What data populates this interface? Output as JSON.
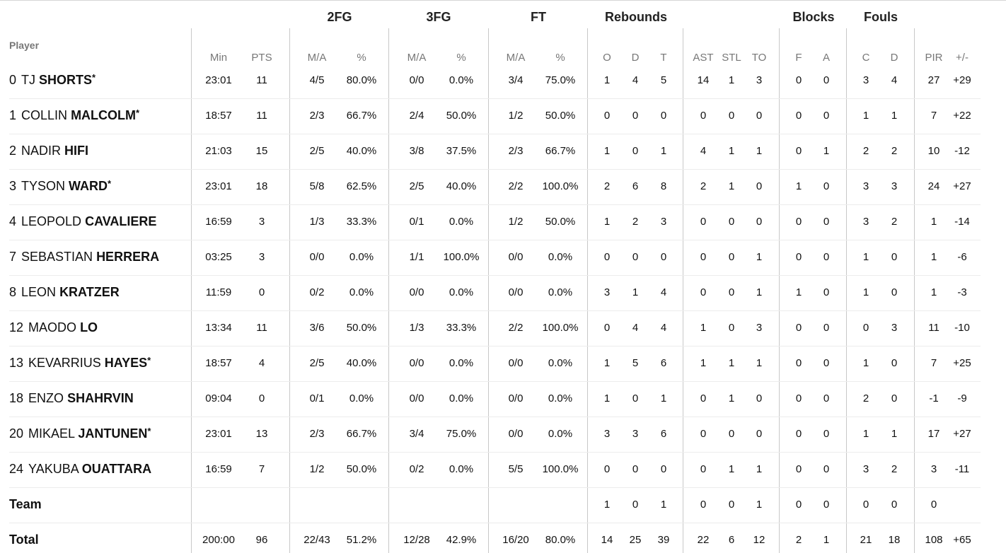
{
  "header": {
    "player": "Player",
    "groups": {
      "fg2": "2FG",
      "fg3": "3FG",
      "ft": "FT",
      "rebounds": "Rebounds",
      "blocks": "Blocks",
      "fouls": "Fouls"
    },
    "columns": {
      "min": "Min",
      "pts": "PTS",
      "fg2_ma": "M/A",
      "fg2_pct": "%",
      "fg3_ma": "M/A",
      "fg3_pct": "%",
      "ft_ma": "M/A",
      "ft_pct": "%",
      "reb_o": "O",
      "reb_d": "D",
      "reb_t": "T",
      "ast": "AST",
      "stl": "STL",
      "to": "TO",
      "blk_f": "F",
      "blk_a": "A",
      "foul_c": "C",
      "foul_d": "D",
      "pir": "PIR",
      "pm": "+/-"
    }
  },
  "players": [
    {
      "number": "0",
      "first": "TJ",
      "last": "SHORTS",
      "starter": "*",
      "min": "23:01",
      "pts": "11",
      "fg2_ma": "4/5",
      "fg2_pct": "80.0%",
      "fg3_ma": "0/0",
      "fg3_pct": "0.0%",
      "ft_ma": "3/4",
      "ft_pct": "75.0%",
      "reb_o": "1",
      "reb_d": "4",
      "reb_t": "5",
      "ast": "14",
      "stl": "1",
      "to": "3",
      "blk_f": "0",
      "blk_a": "0",
      "foul_c": "3",
      "foul_d": "4",
      "pir": "27",
      "pm": "+29"
    },
    {
      "number": "1",
      "first": "COLLIN",
      "last": "MALCOLM",
      "starter": "*",
      "min": "18:57",
      "pts": "11",
      "fg2_ma": "2/3",
      "fg2_pct": "66.7%",
      "fg3_ma": "2/4",
      "fg3_pct": "50.0%",
      "ft_ma": "1/2",
      "ft_pct": "50.0%",
      "reb_o": "0",
      "reb_d": "0",
      "reb_t": "0",
      "ast": "0",
      "stl": "0",
      "to": "0",
      "blk_f": "0",
      "blk_a": "0",
      "foul_c": "1",
      "foul_d": "1",
      "pir": "7",
      "pm": "+22"
    },
    {
      "number": "2",
      "first": "NADIR",
      "last": "HIFI",
      "starter": "",
      "min": "21:03",
      "pts": "15",
      "fg2_ma": "2/5",
      "fg2_pct": "40.0%",
      "fg3_ma": "3/8",
      "fg3_pct": "37.5%",
      "ft_ma": "2/3",
      "ft_pct": "66.7%",
      "reb_o": "1",
      "reb_d": "0",
      "reb_t": "1",
      "ast": "4",
      "stl": "1",
      "to": "1",
      "blk_f": "0",
      "blk_a": "1",
      "foul_c": "2",
      "foul_d": "2",
      "pir": "10",
      "pm": "-12"
    },
    {
      "number": "3",
      "first": "TYSON",
      "last": "WARD",
      "starter": "*",
      "min": "23:01",
      "pts": "18",
      "fg2_ma": "5/8",
      "fg2_pct": "62.5%",
      "fg3_ma": "2/5",
      "fg3_pct": "40.0%",
      "ft_ma": "2/2",
      "ft_pct": "100.0%",
      "reb_o": "2",
      "reb_d": "6",
      "reb_t": "8",
      "ast": "2",
      "stl": "1",
      "to": "0",
      "blk_f": "1",
      "blk_a": "0",
      "foul_c": "3",
      "foul_d": "3",
      "pir": "24",
      "pm": "+27"
    },
    {
      "number": "4",
      "first": "LEOPOLD",
      "last": "CAVALIERE",
      "starter": "",
      "min": "16:59",
      "pts": "3",
      "fg2_ma": "1/3",
      "fg2_pct": "33.3%",
      "fg3_ma": "0/1",
      "fg3_pct": "0.0%",
      "ft_ma": "1/2",
      "ft_pct": "50.0%",
      "reb_o": "1",
      "reb_d": "2",
      "reb_t": "3",
      "ast": "0",
      "stl": "0",
      "to": "0",
      "blk_f": "0",
      "blk_a": "0",
      "foul_c": "3",
      "foul_d": "2",
      "pir": "1",
      "pm": "-14"
    },
    {
      "number": "7",
      "first": "SEBASTIAN",
      "last": "HERRERA",
      "starter": "",
      "min": "03:25",
      "pts": "3",
      "fg2_ma": "0/0",
      "fg2_pct": "0.0%",
      "fg3_ma": "1/1",
      "fg3_pct": "100.0%",
      "ft_ma": "0/0",
      "ft_pct": "0.0%",
      "reb_o": "0",
      "reb_d": "0",
      "reb_t": "0",
      "ast": "0",
      "stl": "0",
      "to": "1",
      "blk_f": "0",
      "blk_a": "0",
      "foul_c": "1",
      "foul_d": "0",
      "pir": "1",
      "pm": "-6"
    },
    {
      "number": "8",
      "first": "LEON",
      "last": "KRATZER",
      "starter": "",
      "min": "11:59",
      "pts": "0",
      "fg2_ma": "0/2",
      "fg2_pct": "0.0%",
      "fg3_ma": "0/0",
      "fg3_pct": "0.0%",
      "ft_ma": "0/0",
      "ft_pct": "0.0%",
      "reb_o": "3",
      "reb_d": "1",
      "reb_t": "4",
      "ast": "0",
      "stl": "0",
      "to": "1",
      "blk_f": "1",
      "blk_a": "0",
      "foul_c": "1",
      "foul_d": "0",
      "pir": "1",
      "pm": "-3"
    },
    {
      "number": "12",
      "first": "MAODO",
      "last": "LO",
      "starter": "",
      "min": "13:34",
      "pts": "11",
      "fg2_ma": "3/6",
      "fg2_pct": "50.0%",
      "fg3_ma": "1/3",
      "fg3_pct": "33.3%",
      "ft_ma": "2/2",
      "ft_pct": "100.0%",
      "reb_o": "0",
      "reb_d": "4",
      "reb_t": "4",
      "ast": "1",
      "stl": "0",
      "to": "3",
      "blk_f": "0",
      "blk_a": "0",
      "foul_c": "0",
      "foul_d": "3",
      "pir": "11",
      "pm": "-10"
    },
    {
      "number": "13",
      "first": "KEVARRIUS",
      "last": "HAYES",
      "starter": "*",
      "min": "18:57",
      "pts": "4",
      "fg2_ma": "2/5",
      "fg2_pct": "40.0%",
      "fg3_ma": "0/0",
      "fg3_pct": "0.0%",
      "ft_ma": "0/0",
      "ft_pct": "0.0%",
      "reb_o": "1",
      "reb_d": "5",
      "reb_t": "6",
      "ast": "1",
      "stl": "1",
      "to": "1",
      "blk_f": "0",
      "blk_a": "0",
      "foul_c": "1",
      "foul_d": "0",
      "pir": "7",
      "pm": "+25"
    },
    {
      "number": "18",
      "first": "ENZO",
      "last": "SHAHRVIN",
      "starter": "",
      "min": "09:04",
      "pts": "0",
      "fg2_ma": "0/1",
      "fg2_pct": "0.0%",
      "fg3_ma": "0/0",
      "fg3_pct": "0.0%",
      "ft_ma": "0/0",
      "ft_pct": "0.0%",
      "reb_o": "1",
      "reb_d": "0",
      "reb_t": "1",
      "ast": "0",
      "stl": "1",
      "to": "0",
      "blk_f": "0",
      "blk_a": "0",
      "foul_c": "2",
      "foul_d": "0",
      "pir": "-1",
      "pm": "-9"
    },
    {
      "number": "20",
      "first": "MIKAEL",
      "last": "JANTUNEN",
      "starter": "*",
      "min": "23:01",
      "pts": "13",
      "fg2_ma": "2/3",
      "fg2_pct": "66.7%",
      "fg3_ma": "3/4",
      "fg3_pct": "75.0%",
      "ft_ma": "0/0",
      "ft_pct": "0.0%",
      "reb_o": "3",
      "reb_d": "3",
      "reb_t": "6",
      "ast": "0",
      "stl": "0",
      "to": "0",
      "blk_f": "0",
      "blk_a": "0",
      "foul_c": "1",
      "foul_d": "1",
      "pir": "17",
      "pm": "+27"
    },
    {
      "number": "24",
      "first": "YAKUBA",
      "last": "OUATTARA",
      "starter": "",
      "min": "16:59",
      "pts": "7",
      "fg2_ma": "1/2",
      "fg2_pct": "50.0%",
      "fg3_ma": "0/2",
      "fg3_pct": "0.0%",
      "ft_ma": "5/5",
      "ft_pct": "100.0%",
      "reb_o": "0",
      "reb_d": "0",
      "reb_t": "0",
      "ast": "0",
      "stl": "1",
      "to": "1",
      "blk_f": "0",
      "blk_a": "0",
      "foul_c": "3",
      "foul_d": "2",
      "pir": "3",
      "pm": "-11"
    }
  ],
  "team": {
    "label": "Team",
    "min": "",
    "pts": "",
    "fg2_ma": "",
    "fg2_pct": "",
    "fg3_ma": "",
    "fg3_pct": "",
    "ft_ma": "",
    "ft_pct": "",
    "reb_o": "1",
    "reb_d": "0",
    "reb_t": "1",
    "ast": "0",
    "stl": "0",
    "to": "1",
    "blk_f": "0",
    "blk_a": "0",
    "foul_c": "0",
    "foul_d": "0",
    "pir": "0",
    "pm": ""
  },
  "total": {
    "label": "Total",
    "min": "200:00",
    "pts": "96",
    "fg2_ma": "22/43",
    "fg2_pct": "51.2%",
    "fg3_ma": "12/28",
    "fg3_pct": "42.9%",
    "ft_ma": "16/20",
    "ft_pct": "80.0%",
    "reb_o": "14",
    "reb_d": "25",
    "reb_t": "39",
    "ast": "22",
    "stl": "6",
    "to": "12",
    "blk_f": "2",
    "blk_a": "1",
    "foul_c": "21",
    "foul_d": "18",
    "pir": "108",
    "pm": "+65"
  }
}
